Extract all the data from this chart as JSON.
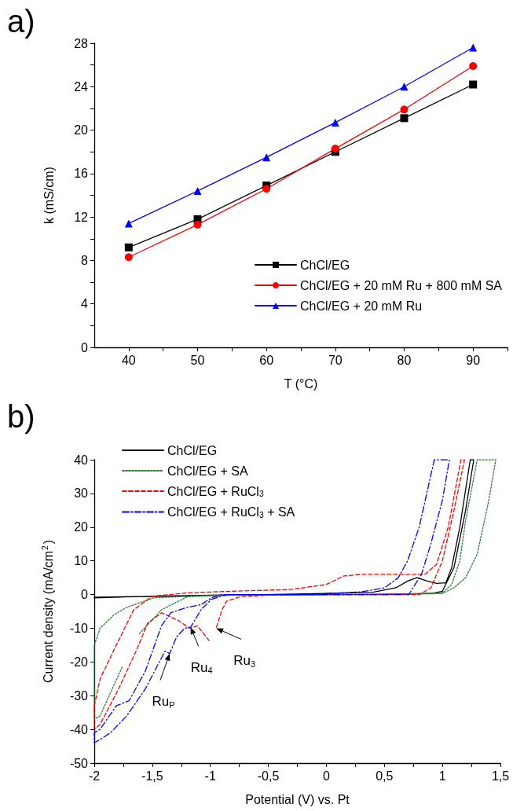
{
  "chart_data": [
    {
      "type": "line",
      "title": "a)",
      "xlabel": "T (°C)",
      "ylabel": "k (mS/cm)",
      "x": [
        40,
        50,
        60,
        70,
        80,
        90
      ],
      "series": [
        {
          "name": "ChCl/EG",
          "color": "#000000",
          "marker": "square",
          "values": [
            9.2,
            11.8,
            14.9,
            18.0,
            21.1,
            24.2
          ]
        },
        {
          "name": "ChCl/EG + 20 mM Ru + 800 mM SA",
          "color": "#ff0000",
          "marker": "circle",
          "values": [
            8.3,
            11.3,
            14.6,
            18.3,
            21.9,
            25.9
          ]
        },
        {
          "name": "ChCl/EG + 20 mM Ru",
          "color": "#0000ff",
          "marker": "triangle",
          "values": [
            11.4,
            14.4,
            17.5,
            20.7,
            24.0,
            27.6
          ]
        }
      ],
      "xlim": [
        35,
        95
      ],
      "xticks": [
        40,
        {
          "value": 45,
          "label": null
        },
        50,
        {
          "value": 55,
          "label": null
        },
        60,
        {
          "value": 65,
          "label": null
        },
        70,
        {
          "value": 75,
          "label": null
        },
        80,
        {
          "value": 85,
          "label": null
        },
        90,
        {
          "value": 95,
          "label": null
        }
      ],
      "ylim": [
        0,
        28
      ],
      "yticks": [
        0,
        {
          "value": 2,
          "label": null
        },
        4,
        {
          "value": 6,
          "label": null
        },
        8,
        {
          "value": 10,
          "label": null
        },
        12,
        {
          "value": 14,
          "label": null
        },
        16,
        {
          "value": 18,
          "label": null
        },
        20,
        {
          "value": 22,
          "label": null
        },
        24,
        {
          "value": 26,
          "label": null
        },
        28
      ],
      "legend": "bottom right",
      "grid": false,
      "line_style": "solid"
    },
    {
      "type": "line",
      "title": "b)",
      "xlabel": "Potential (V) vs. Pt",
      "ylabel": "Current density (mA/cm$^{2}$)",
      "series": [
        {
          "name": "ChCl/EG",
          "color": "#000000",
          "line_style": "solid",
          "x": [
            -2,
            -1.5,
            -1,
            -0.5,
            0,
            0.5,
            0.9,
            1.0,
            1.1,
            1.2,
            1.27,
            1.24,
            1.15,
            1.08,
            1.03,
            0.95,
            0.87,
            0.78,
            0.7,
            0.6,
            0.4,
            0,
            -1,
            -2
          ],
          "values": [
            -1,
            -0.5,
            -0.2,
            0,
            0,
            0.1,
            0.3,
            1,
            8,
            25,
            40,
            40,
            20,
            8,
            3.5,
            3.3,
            4,
            5,
            4,
            2,
            0.7,
            0.3,
            -0.3,
            -0.8
          ]
        },
        {
          "name": "ChCl/EG + SA",
          "color": "#2e7d32",
          "line_style": "dotted",
          "x": [
            -1.76,
            -1.95,
            -2,
            -2,
            -1.95,
            -1.83,
            -1.72,
            -1.49,
            -1,
            0,
            0.5,
            1.0,
            1.1,
            1.2,
            1.3,
            1.4,
            1.46,
            1.3,
            1.2,
            1.15,
            1.08,
            1.0,
            0.5,
            0,
            -1,
            -1.2,
            -1.42,
            -1.61
          ],
          "values": [
            -21.5,
            -36,
            -37,
            -15,
            -10,
            -6,
            -3.8,
            -1,
            -0.2,
            0,
            0,
            0.3,
            2,
            5,
            12,
            28,
            40,
            40,
            22,
            10,
            3,
            0.5,
            0,
            0,
            -0.3,
            -0.7,
            -4.5,
            -11.6
          ]
        },
        {
          "name": "ChCl/EG + RuCl$_{3}$",
          "color": "#ff0000",
          "line_style": "dashed",
          "x": [
            -1.01,
            -1.11,
            -1.18,
            -1.27,
            -1.42,
            -1.54,
            -1.63,
            -1.79,
            -1.95,
            -2,
            -2,
            -1.95,
            -1.81,
            -1.66,
            -1.5,
            -1.2,
            -0.8,
            -0.3,
            0,
            0.15,
            0.3,
            0.8,
            0.85,
            0.95,
            1.05,
            1.16,
            1.19,
            1.1,
            1.0,
            0.9,
            0.8,
            0.5,
            0,
            -0.5,
            -0.74,
            -0.86,
            -0.9,
            -0.95
          ],
          "values": [
            -13.7,
            -9.3,
            -10,
            -7.8,
            -5.4,
            -8.5,
            -16,
            -28,
            -38.5,
            -40,
            -33,
            -25,
            -15,
            -4.5,
            -0.5,
            0.5,
            1,
            1.5,
            3,
            5.5,
            6,
            6,
            6,
            9,
            20,
            40,
            40,
            25,
            10,
            2,
            0,
            0,
            0,
            -0.2,
            -0.6,
            -2,
            -4.6,
            -10
          ]
        },
        {
          "name": "ChCl/EG + RuCl$_{3}$ + SA",
          "color": "#0000ff",
          "line_style": "dashdot",
          "x": [
            0,
            -0.5,
            -0.86,
            -0.99,
            -1.08,
            -1.17,
            -1.22,
            -1.29,
            -1.35,
            -1.39,
            -1.42,
            -1.56,
            -1.72,
            -1.86,
            -1.95,
            -2,
            -2,
            -1.95,
            -1.81,
            -1.7,
            -1.56,
            -1.42,
            -1.34,
            -1.2,
            -1.08,
            -0.99,
            -0.9,
            -0.5,
            0,
            0.5,
            0.71,
            0.82,
            0.9,
            1.0,
            1.06,
            0.93,
            0.8,
            0.7,
            0.62,
            0.5,
            0.3,
            0
          ],
          "values": [
            0,
            0,
            0,
            -1.4,
            -4.5,
            -9.7,
            -10,
            -12.5,
            -17.5,
            -16.8,
            -18.7,
            -28,
            -36,
            -41,
            -43,
            -44,
            -41,
            -40,
            -33,
            -31.5,
            -22.7,
            -9.2,
            -5.4,
            -3.8,
            -3,
            -1,
            0,
            0,
            0,
            0,
            0,
            6,
            15,
            28,
            40,
            40,
            20,
            10,
            5,
            2,
            0.8,
            0.3
          ]
        }
      ],
      "annotations": [
        {
          "text": "Ru$_{P}$",
          "x": -1.35,
          "y": -17.5
        },
        {
          "text": "Ru$_{4}$",
          "x": -1.17,
          "y": -9.7
        },
        {
          "text": "Ru$_{3}$",
          "x": -0.95,
          "y": -10
        }
      ],
      "xlim": [
        -2,
        1.5
      ],
      "xticks": [
        -2,
        {
          "value": -1.75,
          "label": null
        },
        {
          "value": -1.5,
          "label": "-1,5"
        },
        {
          "value": -1.25,
          "label": null
        },
        -1,
        {
          "value": -0.75,
          "label": null
        },
        {
          "value": -0.5,
          "label": "-0,5"
        },
        {
          "value": -0.25,
          "label": null
        },
        0,
        {
          "value": 0.25,
          "label": null
        },
        {
          "value": 0.5,
          "label": "0,5"
        },
        {
          "value": 0.75,
          "label": null
        },
        1,
        {
          "value": 1.25,
          "label": null
        },
        {
          "value": 1.5,
          "label": "1,5"
        }
      ],
      "ylim": [
        -50,
        40
      ],
      "yticks": [
        -50,
        -40,
        -30,
        -20,
        -10,
        0,
        10,
        20,
        30,
        40
      ],
      "legend": "top left",
      "grid": false,
      "marker": "none"
    }
  ]
}
